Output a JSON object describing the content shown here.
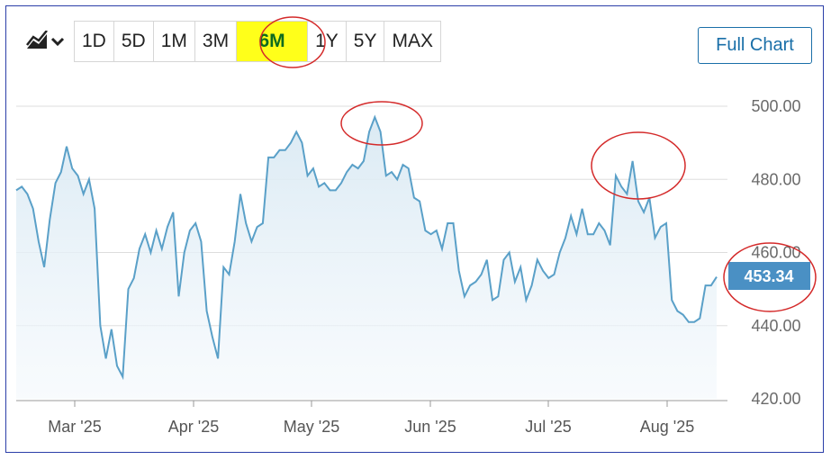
{
  "toolbar": {
    "chart_type_icon": "line-chart-icon",
    "dropdown_icon": "chevron-down-icon",
    "ranges": [
      "1D",
      "5D",
      "1M",
      "3M",
      "6M",
      "1Y",
      "5Y",
      "MAX"
    ],
    "active_range": "6M",
    "full_chart_label": "Full Chart"
  },
  "colors": {
    "line": "#5aa0c8",
    "fill_top": "#d9e9f3",
    "highlight": "#ffff1a",
    "annotation": "#d42a2a",
    "last_label_bg": "#4a90c4",
    "button_border": "#1a6fa8"
  },
  "chart_data": {
    "type": "area",
    "ylim": [
      420,
      500
    ],
    "yticks": [
      "500.00",
      "480.00",
      "460.00",
      "440.00",
      "420.00"
    ],
    "ytick_values": [
      500,
      480,
      460,
      440,
      420
    ],
    "xticks": [
      "Mar '25",
      "Apr '25",
      "May '25",
      "Jun '25",
      "Jul '25",
      "Aug '25"
    ],
    "grid": true,
    "last_value_label": "453.34",
    "series": [
      {
        "values": [
          477,
          478,
          476,
          472,
          463,
          456,
          469,
          479,
          482,
          489,
          483,
          481,
          476,
          480,
          472,
          440,
          431,
          439,
          429,
          426,
          450,
          453,
          461,
          465,
          460,
          466,
          461,
          467,
          471,
          448,
          460,
          466,
          468,
          463,
          444,
          437,
          431,
          456,
          454,
          463,
          476,
          468,
          463,
          467,
          468,
          486,
          486,
          488,
          488,
          490,
          493,
          490,
          481,
          483,
          478,
          479,
          477,
          477,
          479,
          482,
          484,
          483,
          485,
          493,
          497,
          493,
          481,
          482,
          480,
          484,
          483,
          475,
          474,
          466,
          465,
          466,
          461,
          468,
          468,
          455,
          448,
          451,
          452,
          454,
          458,
          447,
          448,
          458,
          460,
          452,
          456,
          447,
          451,
          458,
          455,
          453,
          454,
          460,
          464,
          470,
          465,
          472,
          465,
          465,
          468,
          466,
          462,
          481,
          478,
          476,
          485,
          474,
          471,
          475,
          464,
          467,
          468,
          447,
          444,
          443,
          441,
          441,
          442,
          451,
          451,
          453.34
        ]
      }
    ]
  }
}
